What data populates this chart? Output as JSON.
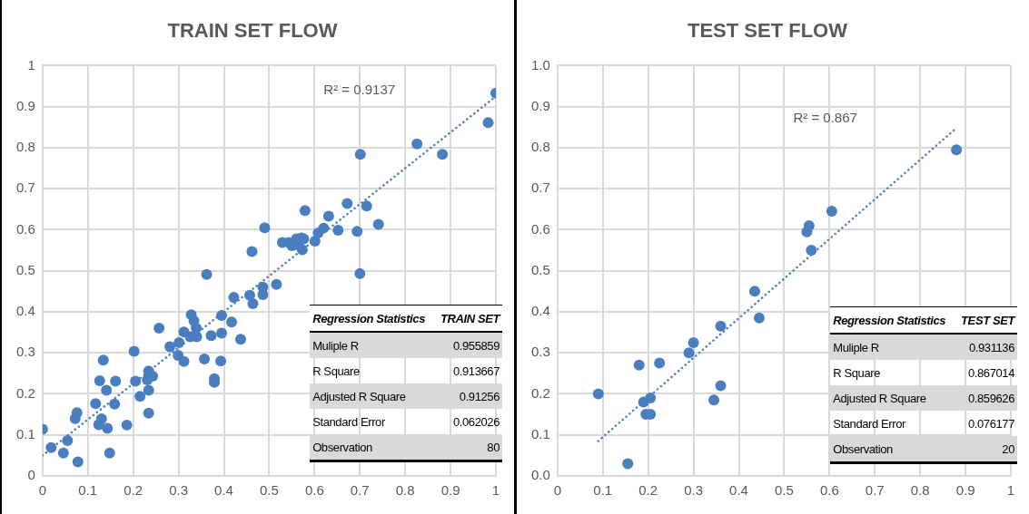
{
  "chart_data": [
    {
      "type": "scatter",
      "title": "TRAIN SET FLOW",
      "marker": "circle",
      "line_style": "dotted",
      "grid": true,
      "xlim": [
        0,
        1
      ],
      "xticks": [
        0,
        0.1,
        0.2,
        0.3,
        0.4,
        0.5,
        0.6,
        0.7,
        0.8,
        0.9,
        1
      ],
      "ylim": [
        0,
        1
      ],
      "yticks": [
        0,
        0.1,
        0.2,
        0.3,
        0.4,
        0.5,
        0.6,
        0.7,
        0.8,
        0.9,
        1
      ],
      "annotations": [
        "R² = 0.9137",
        "Regression Statistics",
        "TRAIN SET",
        "Muliple R",
        "0.955859",
        "R Square",
        "0.913667",
        "Adjusted R Square",
        "0.91256",
        "Standard Error",
        "0.062026",
        "Observation",
        "80"
      ],
      "series": [
        {
          "color": "#4a7ebf",
          "x": [
            0,
            0.019,
            0.046,
            0.055,
            0.078,
            0.072,
            0.076,
            0.117,
            0.124,
            0.13,
            0.126,
            0.134,
            0.143,
            0.141,
            0.148,
            0.159,
            0.161,
            0.186,
            0.202,
            0.205,
            0.215,
            0.234,
            0.234,
            0.231,
            0.234,
            0.243,
            0.257,
            0.281,
            0.299,
            0.301,
            0.312,
            0.312,
            0.326,
            0.328,
            0.334,
            0.339,
            0.34,
            0.357,
            0.362,
            0.372,
            0.379,
            0.379,
            0.393,
            0.395,
            0.395,
            0.417,
            0.422,
            0.437,
            0.457,
            0.464,
            0.462,
            0.486,
            0.486,
            0.49,
            0.516,
            1.0,
            0.983,
            0.826,
            0.882,
            0.701,
            0.672,
            0.715,
            0.579,
            0.631,
            0.741,
            0.62,
            0.608,
            0.652,
            0.694,
            0.601,
            0.529,
            0.543,
            0.56,
            0.571,
            0.564,
            0.573,
            0.7,
            0.576,
            0.55
          ],
          "values": [
            0.114,
            0.069,
            0.056,
            0.086,
            0.034,
            0.14,
            0.154,
            0.176,
            0.125,
            0.139,
            0.232,
            0.282,
            0.116,
            0.209,
            0.056,
            0.175,
            0.231,
            0.124,
            0.304,
            0.231,
            0.194,
            0.153,
            0.209,
            0.234,
            0.256,
            0.243,
            0.36,
            0.315,
            0.294,
            0.325,
            0.279,
            0.351,
            0.339,
            0.393,
            0.378,
            0.36,
            0.339,
            0.285,
            0.491,
            0.342,
            0.237,
            0.228,
            0.28,
            0.348,
            0.391,
            0.375,
            0.435,
            0.333,
            0.44,
            0.42,
            0.547,
            0.442,
            0.46,
            0.605,
            0.467,
            0.933,
            0.861,
            0.809,
            0.784,
            0.784,
            0.664,
            0.658,
            0.647,
            0.633,
            0.613,
            0.604,
            0.592,
            0.599,
            0.596,
            0.572,
            0.569,
            0.569,
            0.578,
            0.58,
            0.563,
            0.551,
            0.493,
            0.578,
            0.561
          ]
        },
        {
          "type": "line",
          "marker": "none",
          "color": "#4a7ebf",
          "x": [
            0,
            1
          ],
          "values": [
            0.05,
            0.925
          ]
        }
      ]
    },
    {
      "type": "scatter",
      "title": "TEST SET FLOW",
      "marker": "circle",
      "line_style": "dotted",
      "grid": true,
      "xlim": [
        0,
        1
      ],
      "xticks": [
        0,
        0.1,
        0.2,
        0.3,
        0.4,
        0.5,
        0.6,
        0.7,
        0.8,
        0.9,
        1
      ],
      "ylim": [
        0,
        1
      ],
      "yticks": [
        {
          "value": 0,
          "label": "0.0"
        },
        0.1,
        0.2,
        0.3,
        0.4,
        0.5,
        0.6,
        0.7,
        0.8,
        0.9,
        {
          "value": 1,
          "label": "1.0"
        }
      ],
      "annotations": [
        "R² = 0.867",
        "Regression Statistics",
        "TEST SET",
        "Muliple R",
        "0.931136",
        "R Square",
        "0.867014",
        "Adjusted R Square",
        "0.859626",
        "Standard Error",
        "0.076177",
        "Observation",
        "20"
      ],
      "series": [
        {
          "color": "#4a7ebf",
          "x": [
            0.09,
            0.155,
            0.18,
            0.19,
            0.195,
            0.205,
            0.205,
            0.225,
            0.29,
            0.3,
            0.345,
            0.36,
            0.36,
            0.435,
            0.445,
            0.55,
            0.555,
            0.56,
            0.605,
            0.88
          ],
          "values": [
            0.2,
            0.03,
            0.27,
            0.18,
            0.15,
            0.15,
            0.19,
            0.275,
            0.3,
            0.325,
            0.185,
            0.365,
            0.22,
            0.45,
            0.385,
            0.595,
            0.61,
            0.55,
            0.645,
            0.795
          ]
        },
        {
          "type": "line",
          "marker": "none",
          "color": "#4a7ebf",
          "x": [
            0.09,
            0.88
          ],
          "values": [
            0.085,
            0.848
          ]
        }
      ]
    }
  ]
}
